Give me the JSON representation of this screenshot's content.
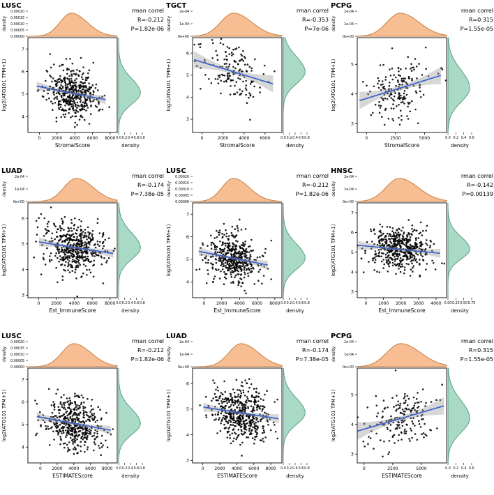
{
  "colors": {
    "background": "#ffffff",
    "top_density_fill": "#F7BE93",
    "top_density_stroke": "#C87F44",
    "right_density_fill": "#A9DAC5",
    "right_density_stroke": "#5E9E88",
    "point": "#000000",
    "regression_line": "#3A62C9",
    "ci_band": "#9c9c9c",
    "panel_border": "#000000",
    "text": "#000000"
  },
  "chart_data": {
    "type": "scatter",
    "shared": {
      "ylabel": "log2(ATG101 TPM+1)",
      "marginal_axis_label": "density",
      "method_label": "rman correl"
    },
    "panels": [
      {
        "title": "LUSC",
        "xlabel": "StromalScore",
        "r_label": "R=-0.212",
        "p_label": "P=1.82e-06",
        "r": -0.212,
        "n": 470,
        "x_mean": 3600,
        "x_sd": 1500,
        "y_mean": 5.05,
        "y_sd": 0.55,
        "x_range": [
          -1300,
          8800
        ],
        "y_range": [
          3.3,
          7.5
        ],
        "x_ticks": [
          0,
          2000,
          4000,
          6000,
          8000
        ],
        "y_ticks": [
          4,
          5,
          6,
          7
        ],
        "top_density_ticks": [
          "0.00000",
          "0.00005",
          "0.00010",
          "0.00015",
          "0.00020"
        ],
        "right_density_ticks": [
          "0.0",
          "0.2",
          "0.4",
          "0.6",
          "0.8"
        ],
        "seed": 11
      },
      {
        "title": "TGCT",
        "xlabel": "StromalScore",
        "r_label": "R=-0.353",
        "p_label": "P=7e-06",
        "r": -0.353,
        "n": 150,
        "x_mean": 3000,
        "x_sd": 1450,
        "y_mean": 5.15,
        "y_sd": 0.6,
        "x_range": [
          -900,
          7600
        ],
        "y_range": [
          2.4,
          6.7
        ],
        "x_ticks": [
          0,
          2000,
          4000,
          6000
        ],
        "y_ticks": [
          3,
          4,
          5,
          6
        ],
        "top_density_ticks": [
          "0e+00",
          "1e-04",
          "2e-04"
        ],
        "right_density_ticks": [
          "0.0",
          "0.2",
          "0.4",
          "0.6",
          "0.8"
        ],
        "seed": 22
      },
      {
        "title": "PCPG",
        "xlabel": "StromalScore",
        "r_label": "R=0.315",
        "p_label": "P=1.55e-05",
        "r": 0.315,
        "n": 175,
        "x_mean": 2900,
        "x_sd": 1350,
        "y_mean": 4.2,
        "y_sd": 0.52,
        "x_range": [
          -800,
          6900
        ],
        "y_range": [
          2.7,
          5.9
        ],
        "x_ticks": [
          0,
          2500,
          5000
        ],
        "y_ticks": [
          3,
          4,
          5
        ],
        "top_density_ticks": [
          "0e+00",
          "1e-04",
          "2e-04"
        ],
        "right_density_ticks": [
          "0.0",
          "0.2",
          "0.4",
          "0.6"
        ],
        "seed": 33
      },
      {
        "title": "LUAD",
        "xlabel": "Est_ImmuneScore",
        "r_label": "R=-0.174",
        "p_label": "P=7.38e-05",
        "r": -0.174,
        "n": 500,
        "x_mean": 4200,
        "x_sd": 1600,
        "y_mean": 4.85,
        "y_sd": 0.5,
        "x_range": [
          -1200,
          8800
        ],
        "y_range": [
          2.9,
          6.6
        ],
        "x_ticks": [
          0,
          2000,
          4000,
          6000,
          8000
        ],
        "y_ticks": [
          3,
          4,
          5,
          6
        ],
        "top_density_ticks": [
          "0e+00",
          "1e-04",
          "2e-04"
        ],
        "right_density_ticks": [
          "0.0",
          "0.2",
          "0.4",
          "0.6",
          "0.8"
        ],
        "seed": 44
      },
      {
        "title": "LUSC",
        "xlabel": "Est_ImmuneScore",
        "r_label": "R=-0.212",
        "p_label": "P=1.82e-06",
        "r": -0.212,
        "n": 470,
        "x_mean": 3300,
        "x_sd": 1500,
        "y_mean": 5.05,
        "y_sd": 0.55,
        "x_range": [
          -1300,
          8800
        ],
        "y_range": [
          3.3,
          7.5
        ],
        "x_ticks": [
          0,
          2000,
          4000,
          6000,
          8000
        ],
        "y_ticks": [
          4,
          5,
          6,
          7
        ],
        "top_density_ticks": [
          "0.00000",
          "0.00005",
          "0.00010",
          "0.00015",
          "0.00020"
        ],
        "right_density_ticks": [
          "0.0",
          "0.2",
          "0.4",
          "0.6",
          "0.8"
        ],
        "seed": 55
      },
      {
        "title": "HNSC",
        "xlabel": "Est_ImmuneScore",
        "r_label": "R=-0.142",
        "p_label": "P=0.00139",
        "r": -0.142,
        "n": 510,
        "x_mean": 1900,
        "x_sd": 900,
        "y_mean": 5.15,
        "y_sd": 0.55,
        "x_range": [
          -500,
          4600
        ],
        "y_range": [
          2.7,
          7.5
        ],
        "x_ticks": [
          0,
          1000,
          2000,
          3000,
          4000
        ],
        "y_ticks": [
          3,
          4,
          5,
          6,
          7
        ],
        "top_density_ticks": [
          "0e+00",
          "1e-04",
          "2e-04"
        ],
        "right_density_ticks": [
          "0.00",
          "0.25",
          "0.50",
          "0.75"
        ],
        "seed": 66
      },
      {
        "title": "LUSC",
        "xlabel": "ESTIMATEScore",
        "r_label": "R=-0.212",
        "p_label": "P=1.82e-06",
        "r": -0.212,
        "n": 470,
        "x_mean": 4000,
        "x_sd": 1700,
        "y_mean": 5.05,
        "y_sd": 0.55,
        "x_range": [
          -1500,
          9200
        ],
        "y_range": [
          3.3,
          7.5
        ],
        "x_ticks": [
          0,
          2000,
          4000,
          6000,
          8000
        ],
        "y_ticks": [
          4,
          5,
          6,
          7
        ],
        "top_density_ticks": [
          "0.00000",
          "0.00005",
          "0.00010",
          "0.00015",
          "0.00020"
        ],
        "right_density_ticks": [
          "0.0",
          "0.2",
          "0.4",
          "0.6",
          "0.8"
        ],
        "seed": 77
      },
      {
        "title": "LUAD",
        "xlabel": "ESTIMATEScore",
        "r_label": "R=-0.174",
        "p_label": "P=7.38e-05",
        "r": -0.174,
        "n": 500,
        "x_mean": 4500,
        "x_sd": 1700,
        "y_mean": 4.85,
        "y_sd": 0.5,
        "x_range": [
          -1200,
          9300
        ],
        "y_range": [
          2.9,
          6.6
        ],
        "x_ticks": [
          0,
          2000,
          4000,
          6000,
          8000
        ],
        "y_ticks": [
          3,
          4,
          5,
          6
        ],
        "top_density_ticks": [
          "0e+00",
          "1e-04",
          "2e-04"
        ],
        "right_density_ticks": [
          "0.0",
          "0.2",
          "0.4",
          "0.6",
          "0.8"
        ],
        "seed": 88
      },
      {
        "title": "PCPG",
        "xlabel": "ESTIMATEScore",
        "r_label": "R=0.315",
        "p_label": "P=1.55e-05",
        "r": 0.315,
        "n": 175,
        "x_mean": 3200,
        "x_sd": 1450,
        "y_mean": 4.2,
        "y_sd": 0.52,
        "x_range": [
          -600,
          7200
        ],
        "y_range": [
          2.7,
          5.9
        ],
        "x_ticks": [
          0,
          2500,
          5000
        ],
        "y_ticks": [
          3,
          4,
          5
        ],
        "top_density_ticks": [
          "0e+00",
          "1e-04",
          "2e-04"
        ],
        "right_density_ticks": [
          "0.0",
          "0.2",
          "0.4",
          "0.6"
        ],
        "seed": 99
      }
    ]
  }
}
